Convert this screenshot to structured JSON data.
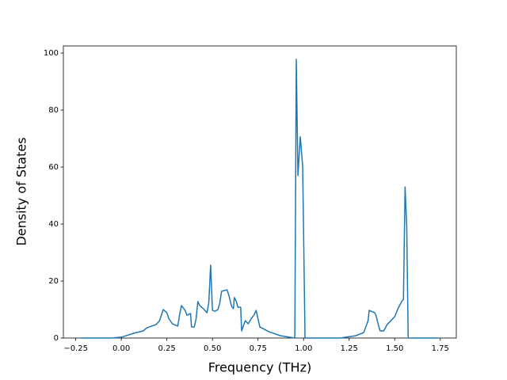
{
  "chart_data": {
    "type": "line",
    "xlabel": "Frequency (THz)",
    "ylabel": "Density of States",
    "xlim": [
      -0.318,
      1.838
    ],
    "ylim": [
      0,
      102.5
    ],
    "xticks": [
      {
        "value": -0.25,
        "label": "−0.25"
      },
      {
        "value": 0,
        "label": "0.00"
      },
      {
        "value": 0.25,
        "label": "0.25"
      },
      {
        "value": 0.5,
        "label": "0.50"
      },
      {
        "value": 0.75,
        "label": "0.75"
      },
      {
        "value": 1,
        "label": "1.00"
      },
      {
        "value": 1.25,
        "label": "1.25"
      },
      {
        "value": 1.5,
        "label": "1.50"
      },
      {
        "value": 1.75,
        "label": "1.75"
      }
    ],
    "yticks": [
      0,
      20,
      40,
      60,
      80,
      100
    ],
    "series": [
      {
        "color": "#1f77b4",
        "x": [
          -0.225,
          -0.056,
          0,
          0.07,
          0.12,
          0.14,
          0.19,
          0.21,
          0.23,
          0.25,
          0.26,
          0.28,
          0.31,
          0.32,
          0.33,
          0.35,
          0.36,
          0.38,
          0.385,
          0.4,
          0.41,
          0.42,
          0.43,
          0.45,
          0.47,
          0.48,
          0.49,
          0.5,
          0.515,
          0.53,
          0.54,
          0.55,
          0.58,
          0.59,
          0.605,
          0.615,
          0.62,
          0.63,
          0.64,
          0.655,
          0.66,
          0.68,
          0.696,
          0.714,
          0.727,
          0.74,
          0.75,
          0.76,
          0.81,
          0.874,
          0.952,
          0.96,
          0.969,
          0.982,
          0.995,
          1.008,
          1.2,
          1.285,
          1.33,
          1.354,
          1.36,
          1.39,
          1.397,
          1.41,
          1.42,
          1.44,
          1.458,
          1.5,
          1.52,
          1.54,
          1.548,
          1.557,
          1.566,
          1.574,
          1.74
        ],
        "values": [
          0,
          0,
          0.3,
          1.7,
          2.5,
          3.6,
          4.7,
          6.1,
          10,
          8.9,
          6.9,
          5,
          4.2,
          8.3,
          11.4,
          9.7,
          8,
          8.6,
          3.9,
          3.9,
          6.7,
          12.8,
          11.4,
          10.3,
          8.9,
          12.5,
          25.6,
          9.7,
          9.4,
          10,
          12.2,
          16.4,
          16.9,
          15,
          11.1,
          10.3,
          14.2,
          13,
          10.8,
          10.8,
          2.5,
          6.1,
          5,
          6.9,
          8,
          9.7,
          6.7,
          3.9,
          2.2,
          0.8,
          0,
          97.8,
          57,
          70.6,
          60.3,
          0,
          0,
          0.8,
          1.9,
          6.1,
          9.7,
          8.9,
          8,
          4.7,
          2.5,
          2.5,
          4.7,
          7.5,
          10.6,
          13,
          13.6,
          53,
          39.4,
          0,
          0
        ]
      }
    ]
  }
}
